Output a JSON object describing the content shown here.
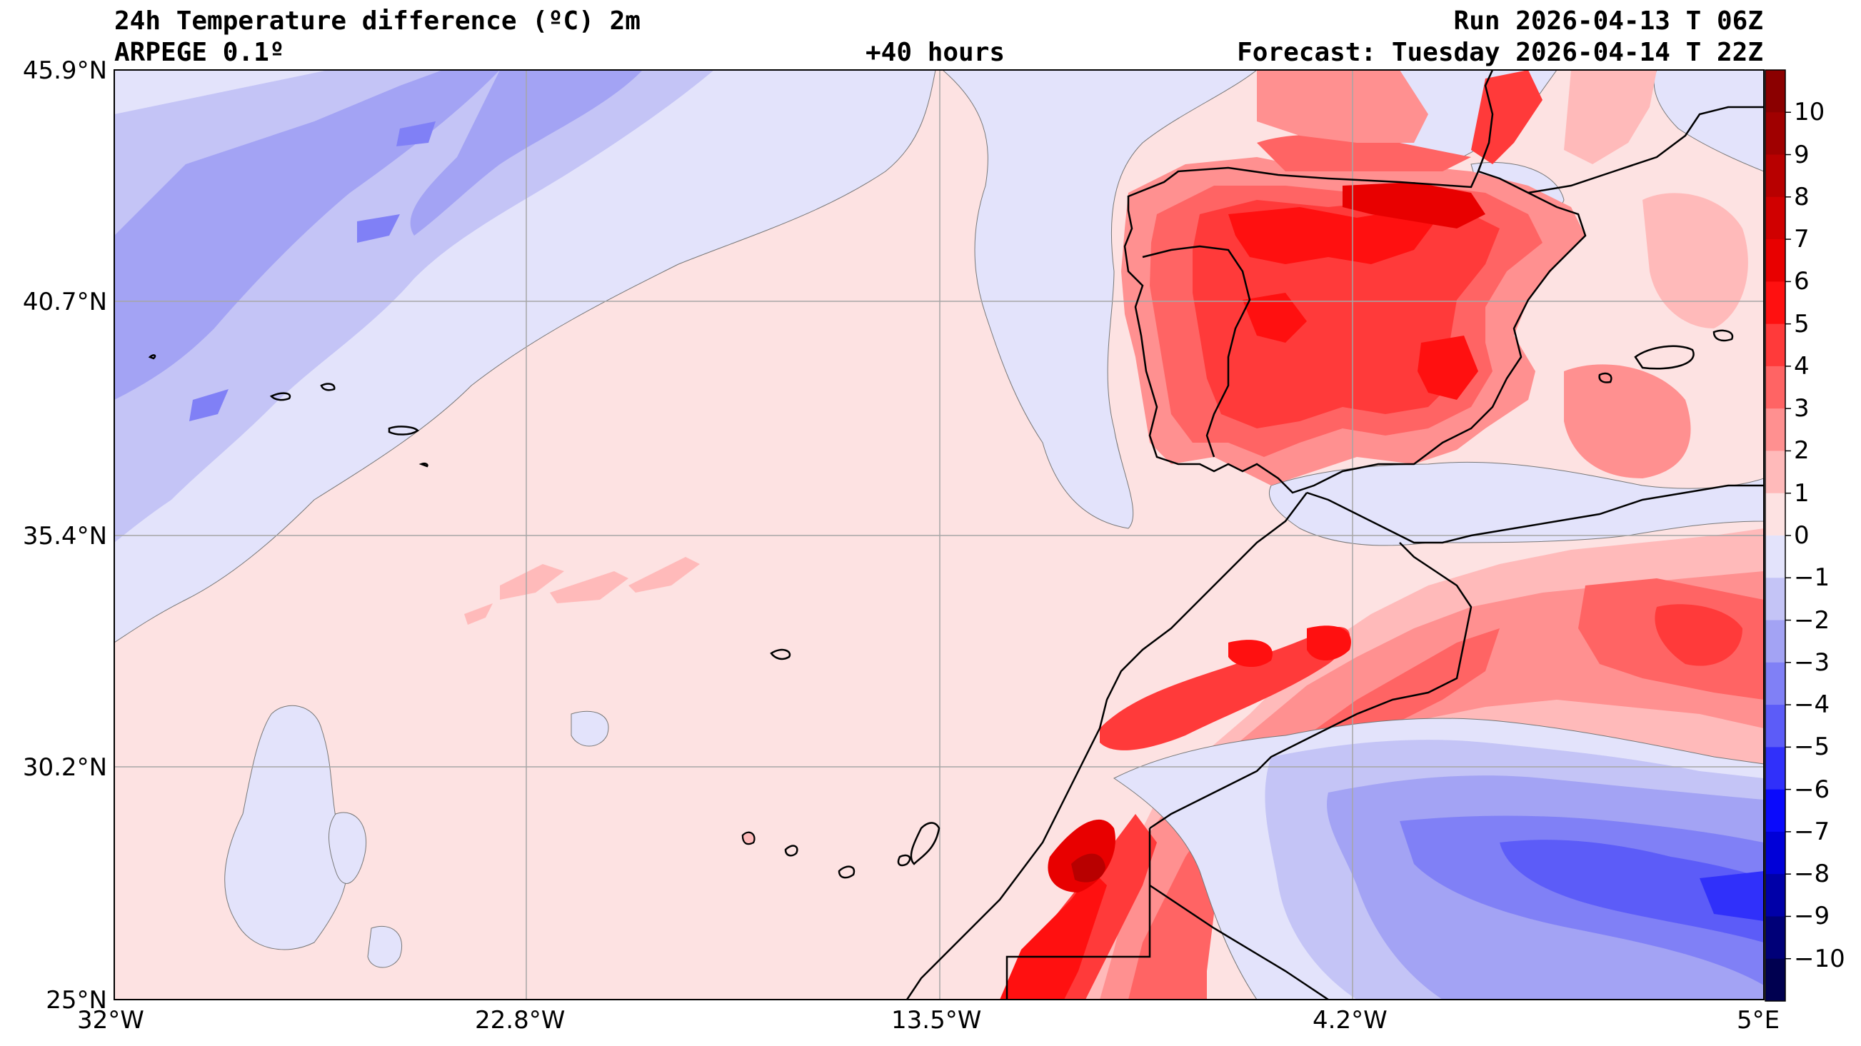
{
  "header": {
    "title_left_1": "24h Temperature difference (ºC) 2m",
    "title_left_2": "ARPEGE 0.1º",
    "title_center": "+40 hours",
    "title_right_1": "Run 2026-04-13 T 06Z",
    "title_right_2": "Forecast: Tuesday 2026-04-14 T 22Z"
  },
  "map": {
    "lat_labels": [
      "45.9°N",
      "40.7°N",
      "35.4°N",
      "30.2°N",
      "25°N"
    ],
    "lon_labels": [
      "32°W",
      "22.8°W",
      "13.5°W",
      "4.2°W",
      "5°E"
    ],
    "ocean_color": "#fde2e2"
  },
  "colorbar": {
    "ticks": [
      "10",
      "9",
      "8",
      "7",
      "6",
      "5",
      "4",
      "3",
      "2",
      "1",
      "0",
      "−1",
      "−2",
      "−3",
      "−4",
      "−5",
      "−6",
      "−7",
      "−8",
      "−9",
      "−10"
    ],
    "colors": [
      "#8b0000",
      "#a00000",
      "#b80000",
      "#d00000",
      "#e80000",
      "#ff1010",
      "#ff3a3a",
      "#ff6464",
      "#ff9090",
      "#ffbaba",
      "#fde2e2",
      "#e3e3fb",
      "#c4c4f6",
      "#a3a3f4",
      "#8080f6",
      "#5c5cf8",
      "#3030fa",
      "#0a0afc",
      "#0000d8",
      "#0000a8",
      "#000078",
      "#000050"
    ]
  }
}
